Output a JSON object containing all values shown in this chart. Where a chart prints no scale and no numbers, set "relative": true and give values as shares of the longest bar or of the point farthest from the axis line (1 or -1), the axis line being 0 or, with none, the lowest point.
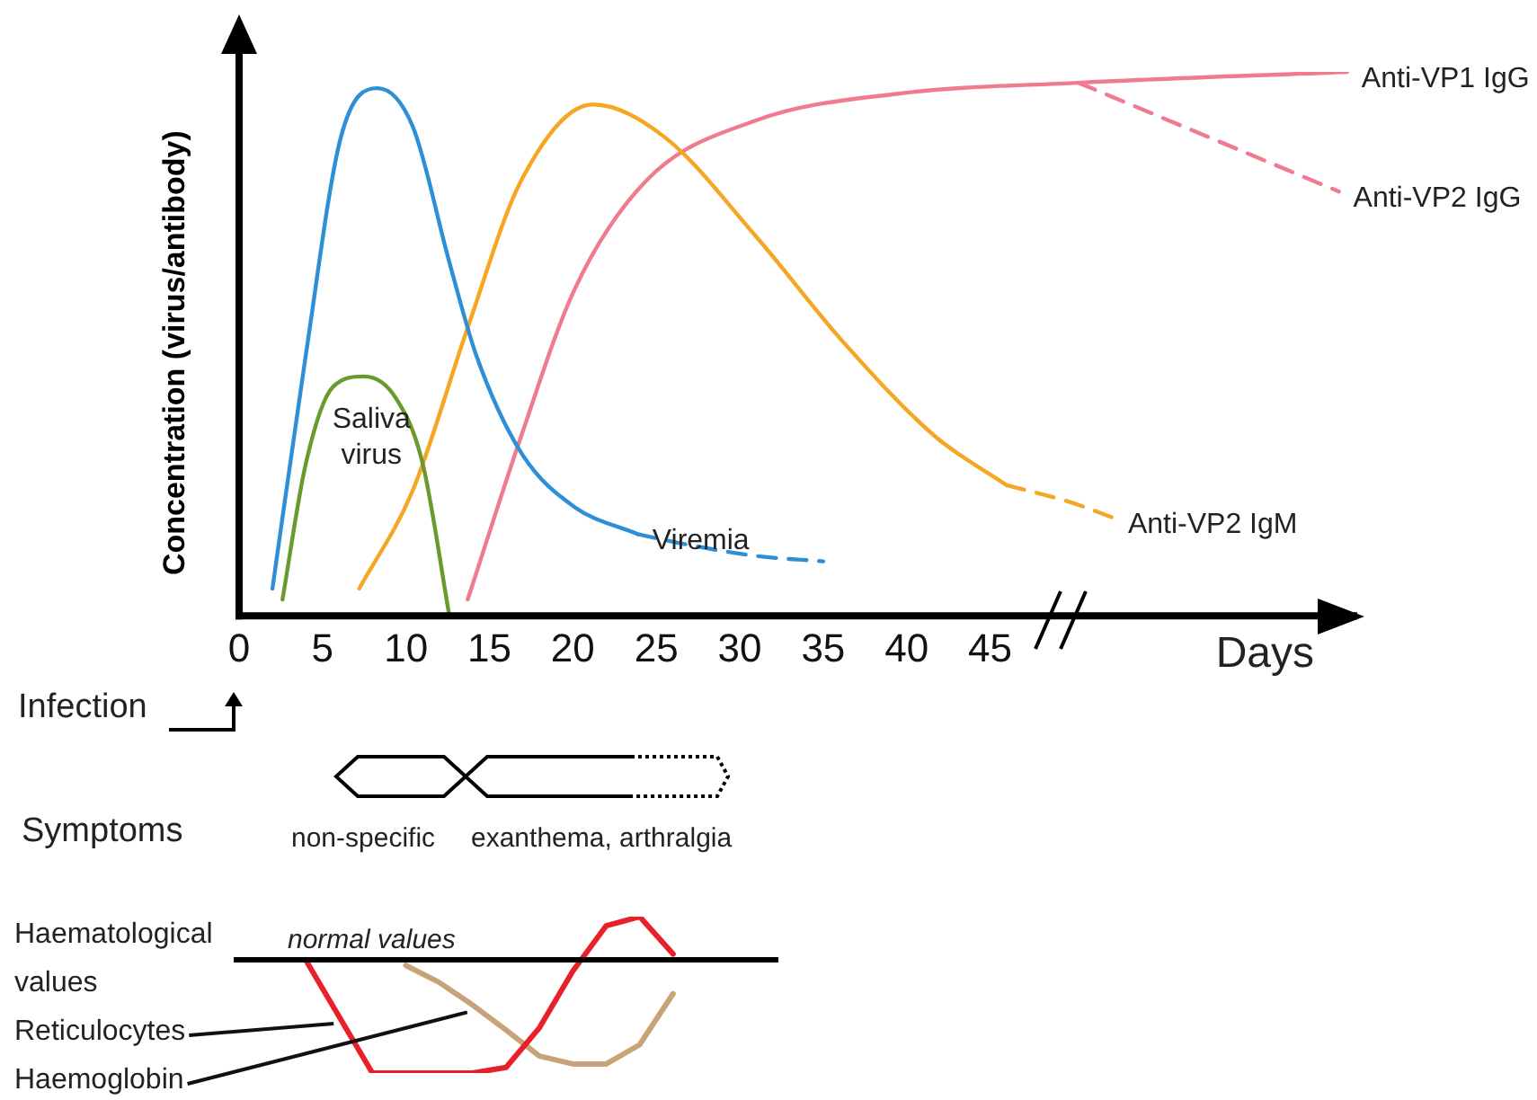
{
  "chart_data": [
    {
      "type": "line",
      "relative": true,
      "ylabel": "Concentration (virus/antibody)",
      "xlabel": "Days",
      "xlim": [
        0,
        67
      ],
      "xticks": [
        0,
        5,
        10,
        15,
        20,
        25,
        30,
        35,
        40,
        45
      ],
      "legend": false,
      "grid": false,
      "marker": "none",
      "annotations": [
        "Infection",
        "Symptoms",
        "non-specific",
        "exanthema, arthralgia"
      ],
      "series": [
        {
          "name": "Saliva virus",
          "color": "#6a9a2e",
          "x": [
            2.6,
            4,
            5.6,
            7.5,
            9.4,
            11,
            12.6
          ],
          "values": [
            0.03,
            0.28,
            0.42,
            0.44,
            0.4,
            0.28,
            0
          ]
        },
        {
          "name": "Viremia",
          "color": "#2f8fd6",
          "x": [
            2,
            4,
            6.1,
            8.3,
            10.4,
            12.6,
            14.2,
            16.9,
            20.1,
            23.9
          ],
          "values": [
            0.05,
            0.48,
            0.88,
            0.97,
            0.9,
            0.65,
            0.48,
            0.3,
            0.2,
            0.15
          ]
        },
        {
          "color": "#2f8fd6",
          "line_style": "dashed",
          "x": [
            23.9,
            27,
            31,
            35
          ],
          "values": [
            0.15,
            0.13,
            0.11,
            0.1
          ]
        },
        {
          "color": "#f5a623",
          "x": [
            7.2,
            10.4,
            13.7,
            16.9,
            21.2,
            25.5,
            30.9,
            36.3,
            41.7,
            46
          ],
          "values": [
            0.05,
            0.23,
            0.53,
            0.8,
            0.94,
            0.88,
            0.7,
            0.5,
            0.33,
            0.24
          ]
        },
        {
          "name": "Anti-VP2 IgM",
          "color": "#f5a623",
          "line_style": "dashed",
          "x": [
            46,
            49.7,
            52.4
          ],
          "values": [
            0.24,
            0.21,
            0.18
          ]
        },
        {
          "name": "Anti-VP1 IgG",
          "color": "#f07a8e",
          "x": [
            13.7,
            16.9,
            20.1,
            24.4,
            30.9,
            39.5,
            50.3,
            66.4
          ],
          "values": [
            0.03,
            0.33,
            0.6,
            0.8,
            0.91,
            0.96,
            0.98,
            1
          ]
        },
        {
          "name": "Anti-VP2 IgG",
          "color": "#f07a8e",
          "line_style": "dashed",
          "x": [
            50.3,
            65.9
          ],
          "values": [
            0.98,
            0.78
          ]
        }
      ]
    },
    {
      "type": "line",
      "relative": true,
      "ylabel": "Haematological values",
      "categories": [
        null,
        null,
        null,
        null,
        null,
        null,
        null,
        null,
        null,
        null,
        null,
        null,
        null
      ],
      "tick_labels": false,
      "legend": false,
      "grid": false,
      "marker": "none",
      "ref_lines": [
        {
          "axis": "y",
          "value": 0,
          "label": "normal values",
          "color": "#000000"
        }
      ],
      "series": [
        {
          "name": "Reticulocytes",
          "color": "#e8202a",
          "values": [
            0,
            -0.5,
            -1,
            -1,
            -1,
            -1,
            -0.95,
            -0.6,
            -0.1,
            0.3,
            0.38,
            0.05,
            null
          ]
        },
        {
          "name": "Haemoglobin",
          "color": "#c8a37a",
          "values": [
            null,
            null,
            null,
            -0.05,
            -0.2,
            -0.4,
            -0.62,
            -0.85,
            -0.92,
            -0.92,
            -0.75,
            -0.3,
            null
          ]
        }
      ]
    }
  ]
}
